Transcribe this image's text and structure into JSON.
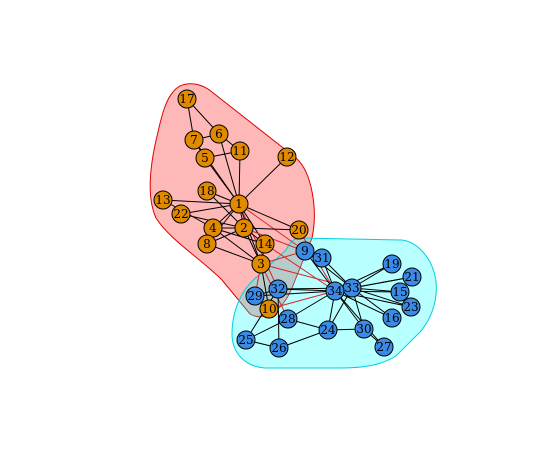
{
  "diagram": {
    "colors": {
      "group_a_fill": "#E08A00",
      "group_b_fill": "#3B8BE6",
      "hull_a_fill": "rgba(255,0,0,0.28)",
      "hull_a_stroke": "#e00000",
      "hull_b_fill": "rgba(0,255,255,0.28)",
      "hull_b_stroke": "#00d0e0",
      "edge": "#000000",
      "between_edge": "#d62728"
    },
    "groups": {
      "A": [
        "1",
        "2",
        "3",
        "4",
        "5",
        "6",
        "7",
        "8",
        "10",
        "11",
        "12",
        "13",
        "14",
        "17",
        "18",
        "20",
        "22"
      ],
      "B": [
        "9",
        "15",
        "16",
        "19",
        "21",
        "23",
        "24",
        "25",
        "26",
        "27",
        "28",
        "29",
        "30",
        "31",
        "32",
        "33",
        "34"
      ]
    },
    "nodes": [
      {
        "id": "1",
        "label": "1"
      },
      {
        "id": "2",
        "label": "2"
      },
      {
        "id": "3",
        "label": "3"
      },
      {
        "id": "4",
        "label": "4"
      },
      {
        "id": "5",
        "label": "5"
      },
      {
        "id": "6",
        "label": "6"
      },
      {
        "id": "7",
        "label": "7"
      },
      {
        "id": "8",
        "label": "8"
      },
      {
        "id": "9",
        "label": "9"
      },
      {
        "id": "10",
        "label": "10"
      },
      {
        "id": "11",
        "label": "11"
      },
      {
        "id": "12",
        "label": "12"
      },
      {
        "id": "13",
        "label": "13"
      },
      {
        "id": "14",
        "label": "14"
      },
      {
        "id": "15",
        "label": "15"
      },
      {
        "id": "16",
        "label": "16"
      },
      {
        "id": "17",
        "label": "17"
      },
      {
        "id": "18",
        "label": "18"
      },
      {
        "id": "19",
        "label": "19"
      },
      {
        "id": "20",
        "label": "20"
      },
      {
        "id": "21",
        "label": "21"
      },
      {
        "id": "22",
        "label": "22"
      },
      {
        "id": "23",
        "label": "23"
      },
      {
        "id": "24",
        "label": "24"
      },
      {
        "id": "25",
        "label": "25"
      },
      {
        "id": "26",
        "label": "26"
      },
      {
        "id": "27",
        "label": "27"
      },
      {
        "id": "28",
        "label": "28"
      },
      {
        "id": "29",
        "label": "29"
      },
      {
        "id": "30",
        "label": "30"
      },
      {
        "id": "31",
        "label": "31"
      },
      {
        "id": "32",
        "label": "32"
      },
      {
        "id": "33",
        "label": "33"
      },
      {
        "id": "34",
        "label": "34"
      }
    ],
    "edges": [
      [
        "1",
        "2"
      ],
      [
        "1",
        "3"
      ],
      [
        "1",
        "4"
      ],
      [
        "1",
        "5"
      ],
      [
        "1",
        "6"
      ],
      [
        "1",
        "7"
      ],
      [
        "1",
        "8"
      ],
      [
        "1",
        "9"
      ],
      [
        "1",
        "11"
      ],
      [
        "1",
        "12"
      ],
      [
        "1",
        "13"
      ],
      [
        "1",
        "14"
      ],
      [
        "1",
        "18"
      ],
      [
        "1",
        "20"
      ],
      [
        "1",
        "22"
      ],
      [
        "1",
        "32"
      ],
      [
        "2",
        "3"
      ],
      [
        "2",
        "4"
      ],
      [
        "2",
        "8"
      ],
      [
        "2",
        "14"
      ],
      [
        "2",
        "18"
      ],
      [
        "2",
        "20"
      ],
      [
        "2",
        "22"
      ],
      [
        "2",
        "31"
      ],
      [
        "3",
        "4"
      ],
      [
        "3",
        "8"
      ],
      [
        "3",
        "9"
      ],
      [
        "3",
        "10"
      ],
      [
        "3",
        "14"
      ],
      [
        "3",
        "28"
      ],
      [
        "3",
        "29"
      ],
      [
        "3",
        "33"
      ],
      [
        "4",
        "8"
      ],
      [
        "4",
        "13"
      ],
      [
        "4",
        "14"
      ],
      [
        "5",
        "7"
      ],
      [
        "5",
        "11"
      ],
      [
        "6",
        "7"
      ],
      [
        "6",
        "11"
      ],
      [
        "6",
        "17"
      ],
      [
        "7",
        "17"
      ],
      [
        "9",
        "31"
      ],
      [
        "9",
        "33"
      ],
      [
        "9",
        "34"
      ],
      [
        "10",
        "34"
      ],
      [
        "14",
        "34"
      ],
      [
        "20",
        "34"
      ],
      [
        "15",
        "33"
      ],
      [
        "15",
        "34"
      ],
      [
        "16",
        "33"
      ],
      [
        "16",
        "34"
      ],
      [
        "19",
        "33"
      ],
      [
        "19",
        "34"
      ],
      [
        "21",
        "33"
      ],
      [
        "21",
        "34"
      ],
      [
        "23",
        "33"
      ],
      [
        "23",
        "34"
      ],
      [
        "24",
        "26"
      ],
      [
        "24",
        "28"
      ],
      [
        "24",
        "30"
      ],
      [
        "24",
        "33"
      ],
      [
        "24",
        "34"
      ],
      [
        "25",
        "26"
      ],
      [
        "25",
        "28"
      ],
      [
        "25",
        "32"
      ],
      [
        "26",
        "32"
      ],
      [
        "27",
        "30"
      ],
      [
        "27",
        "34"
      ],
      [
        "28",
        "34"
      ],
      [
        "29",
        "32"
      ],
      [
        "29",
        "34"
      ],
      [
        "30",
        "33"
      ],
      [
        "30",
        "34"
      ],
      [
        "31",
        "33"
      ],
      [
        "31",
        "34"
      ],
      [
        "32",
        "33"
      ],
      [
        "32",
        "34"
      ],
      [
        "33",
        "34"
      ]
    ]
  }
}
